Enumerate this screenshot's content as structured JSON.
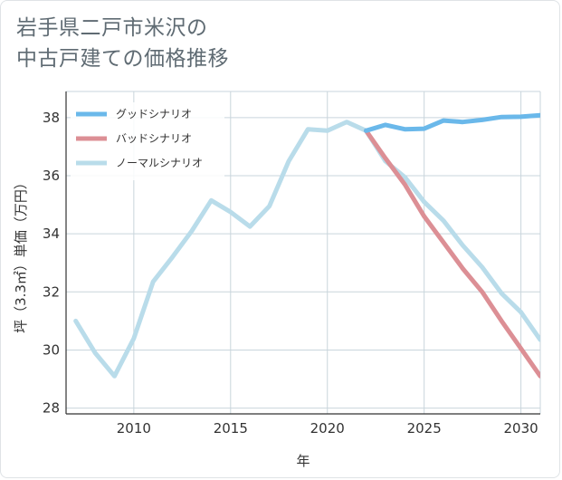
{
  "title_line1": "岩手県二戸市米沢の",
  "title_line2": "中古戸建ての価格推移",
  "chart_data": {
    "type": "line",
    "xlabel": "年",
    "ylabel": "坪（3.3㎡）単価（万円）",
    "xlim": [
      2006.5,
      2031
    ],
    "ylim": [
      27.8,
      38.9
    ],
    "x_ticks": [
      2010,
      2015,
      2020,
      2025,
      2030
    ],
    "y_ticks": [
      28,
      30,
      32,
      34,
      36,
      38
    ],
    "grid": true,
    "legend_position": "top-left",
    "series": [
      {
        "name": "グッドシナリオ",
        "color": "#6ab8ea",
        "x": [
          2022,
          2023,
          2024,
          2025,
          2026,
          2027,
          2028,
          2029,
          2030,
          2031
        ],
        "y": [
          37.55,
          37.75,
          37.6,
          37.62,
          37.9,
          37.85,
          37.92,
          38.02,
          38.03,
          38.08
        ]
      },
      {
        "name": "バッドシナリオ",
        "color": "#dc8f95",
        "x": [
          2022,
          2023,
          2024,
          2025,
          2026,
          2027,
          2028,
          2029,
          2030,
          2031
        ],
        "y": [
          37.55,
          36.6,
          35.7,
          34.6,
          33.7,
          32.8,
          32.0,
          31.0,
          30.05,
          29.1
        ]
      },
      {
        "name": "ノーマルシナリオ",
        "color": "#b9dcea",
        "x": [
          2007,
          2008,
          2009,
          2010,
          2011,
          2012,
          2013,
          2014,
          2015,
          2016,
          2017,
          2018,
          2019,
          2020,
          2021,
          2022,
          2023,
          2024,
          2025,
          2026,
          2027,
          2028,
          2029,
          2030,
          2031
        ],
        "y": [
          31.0,
          29.9,
          29.1,
          30.4,
          32.35,
          33.2,
          34.1,
          35.15,
          34.75,
          34.25,
          34.95,
          36.5,
          37.6,
          37.55,
          37.85,
          37.55,
          36.5,
          35.95,
          35.1,
          34.45,
          33.6,
          32.85,
          31.95,
          31.3,
          30.35
        ]
      }
    ]
  }
}
